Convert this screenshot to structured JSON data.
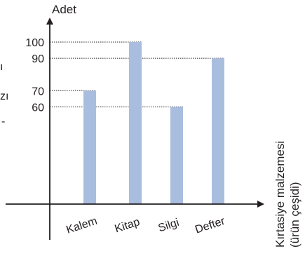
{
  "chart_data": {
    "type": "bar",
    "categories": [
      "Kalem",
      "Kitap",
      "Silgi",
      "Defter"
    ],
    "values": [
      70,
      100,
      60,
      90
    ],
    "yticks": [
      60,
      70,
      90,
      100
    ],
    "ylabel": "Adet",
    "xlabel_line1": "Kırtasiye malzemesi",
    "xlabel_line2": "(ürün çeşidi)",
    "ylim": [
      0,
      115
    ],
    "grid": "dotted guide lines from the y-axis to each bar top",
    "bar_color": "#a9bddf",
    "axis_color": "#231f20"
  },
  "cut_text": {
    "line1": "ı",
    "line2": "zı",
    "line3": "-"
  }
}
